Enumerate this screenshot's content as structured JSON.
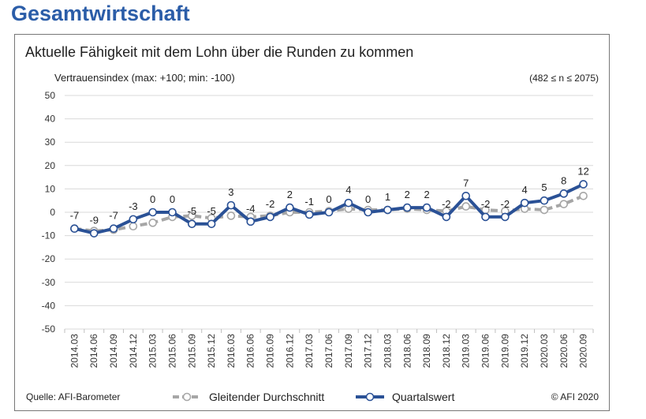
{
  "heading": "Gesamtwirtschaft",
  "subtitle": "Aktuelle Fähigkeit mit dem Lohn über die Runden zu kommen",
  "ylabel": "Vertrauensindex (max: +100; min: -100)",
  "n_info": "(482 ≤ n ≤ 2075)",
  "source": "Quelle: AFI-Barometer",
  "copyright": "© AFI 2020",
  "colors": {
    "heading": "#2b5da8",
    "quartal": "#2a5196",
    "gleitend": "#a6a6a6"
  },
  "legend": {
    "gleitend": "Gleitender Durchschnitt",
    "quartal": "Quartalswert"
  },
  "chart_data": {
    "type": "line",
    "ylim": [
      -50,
      50
    ],
    "yticks": [
      50,
      40,
      30,
      20,
      10,
      0,
      -10,
      -20,
      -30,
      -40,
      -50
    ],
    "categories": [
      "2014.03",
      "2014.06",
      "2014.09",
      "2014.12",
      "2015.03",
      "2015.06",
      "2015.09",
      "2015.12",
      "2016.03",
      "2016.06",
      "2016.09",
      "2016.12",
      "2017.03",
      "2017.06",
      "2017.09",
      "2017.12",
      "2018.03",
      "2018.06",
      "2018.09",
      "2018.12",
      "2019.03",
      "2019.06",
      "2019.09",
      "2019.12",
      "2020.03",
      "2020.06",
      "2020.09"
    ],
    "series": [
      {
        "name": "Gleitender Durchschnitt",
        "values": [
          -7,
          -8,
          -7.5,
          -6,
          -4.5,
          -2,
          -1.5,
          -2.5,
          -1.5,
          -2,
          -1.5,
          0,
          0,
          0.5,
          1.5,
          1,
          1,
          1.5,
          1,
          0.5,
          2.5,
          1,
          0.5,
          1.5,
          1,
          3.5,
          7
        ]
      },
      {
        "name": "Quartalswert",
        "values": [
          -7,
          -9,
          -7,
          -3,
          0,
          0,
          -5,
          -5,
          3,
          -4,
          -2,
          2,
          -1,
          0,
          4,
          0,
          1,
          2,
          2,
          -2,
          7,
          -2,
          -2,
          4,
          5,
          8,
          12
        ],
        "labels": [
          "-7",
          "-9",
          "-7",
          "-3",
          "0",
          "0",
          "-5",
          "-5",
          "3",
          "-4",
          "-2",
          "2",
          "-1",
          "0",
          "4",
          "0",
          "1",
          "2",
          "2",
          "-2",
          "7",
          "-2",
          "-2",
          "4",
          "5",
          "8",
          "12"
        ]
      }
    ]
  }
}
